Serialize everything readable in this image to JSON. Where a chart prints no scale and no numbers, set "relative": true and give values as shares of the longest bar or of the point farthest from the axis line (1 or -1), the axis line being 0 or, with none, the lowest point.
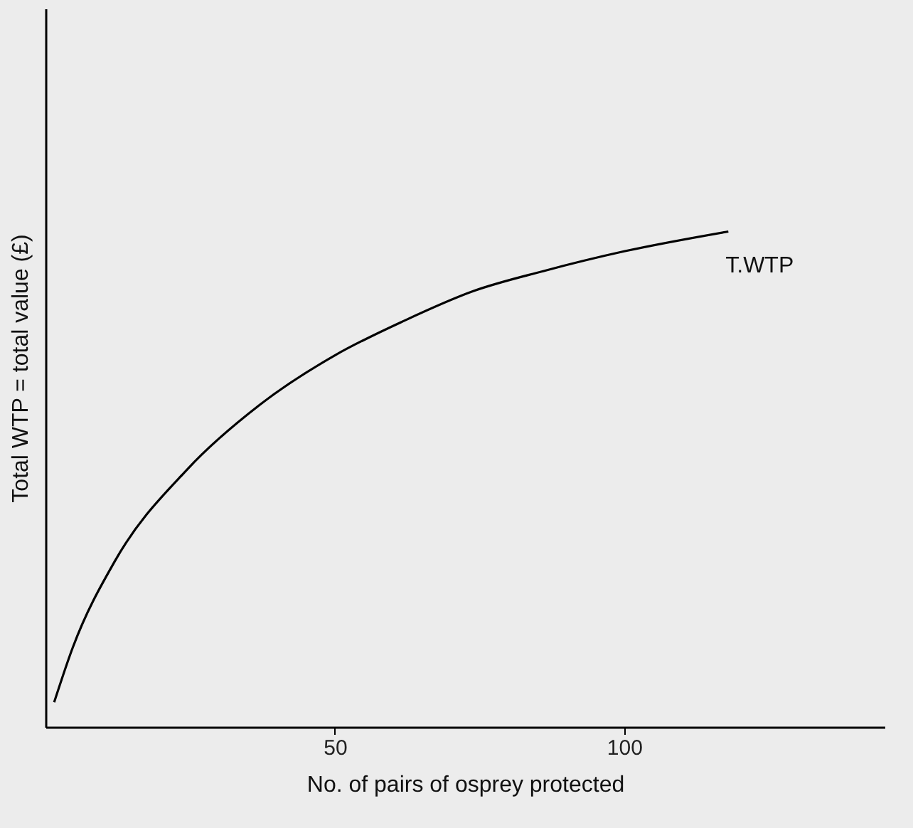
{
  "chart_data": {
    "type": "line",
    "xlabel": "No. of pairs of osprey protected",
    "ylabel": "Total WTP = total value (£)",
    "relative": true,
    "tick_labels": "x",
    "grid": false,
    "marker": "none",
    "line_style": "solid",
    "xlim": [
      0,
      145
    ],
    "xticks": [
      50,
      100
    ],
    "series": [
      {
        "name": "T.WTP",
        "color": "#000000",
        "x": [
          1.5,
          4.7,
          12,
          24.5,
          37,
          50,
          62,
          74,
          86,
          100,
          118
        ],
        "values": [
          0.05,
          0.16,
          0.335,
          0.52,
          0.65,
          0.75,
          0.82,
          0.88,
          0.92,
          0.96,
          1.0
        ]
      }
    ]
  }
}
